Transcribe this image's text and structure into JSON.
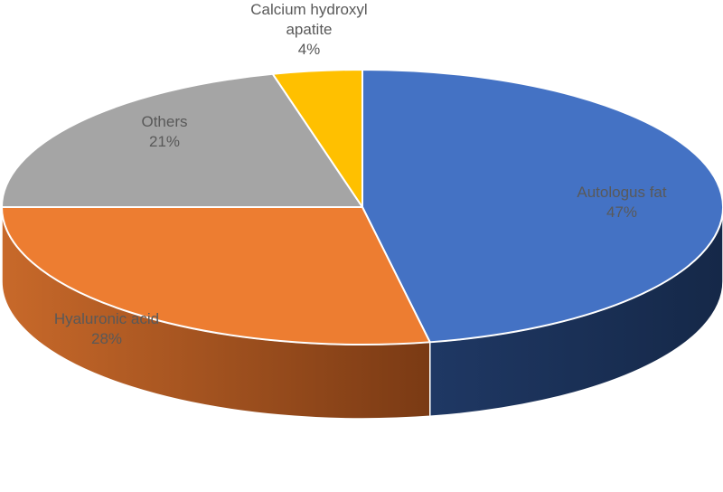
{
  "chart_data": {
    "type": "pie",
    "title": "",
    "style": "3d",
    "slices": [
      {
        "label": "Autologus fat",
        "value": 47,
        "display": "47%",
        "color": "#4472C4",
        "side_color": "#1F3864",
        "label_color": "#595959"
      },
      {
        "label": "Hyaluronic acid",
        "value": 28,
        "display": "28%",
        "color": "#ED7D31",
        "side_color": "#9A4A18",
        "label_color": "#595959"
      },
      {
        "label": "Others",
        "value": 21,
        "display": "21%",
        "color": "#A5A5A5",
        "side_color": "#6E6E6E",
        "label_color": "#595959"
      },
      {
        "label": "Calcium hydroxyl apatite",
        "label_lines": [
          "Calcium hydroxyl",
          "apatite"
        ],
        "value": 4,
        "display": "4%",
        "color": "#FFC000",
        "side_color": "#B38600",
        "label_color": "#262626"
      }
    ]
  }
}
